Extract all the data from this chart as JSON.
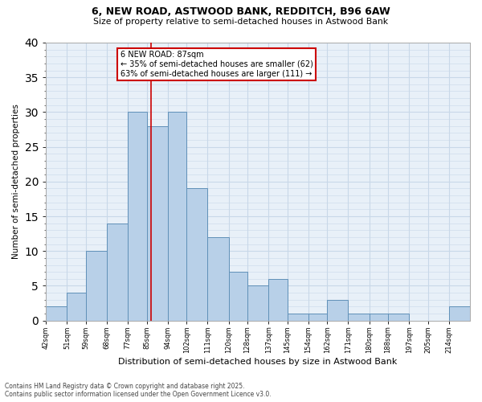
{
  "title1": "6, NEW ROAD, ASTWOOD BANK, REDDITCH, B96 6AW",
  "title2": "Size of property relative to semi-detached houses in Astwood Bank",
  "xlabel": "Distribution of semi-detached houses by size in Astwood Bank",
  "ylabel": "Number of semi-detached properties",
  "bin_labels": [
    "42sqm",
    "51sqm",
    "59sqm",
    "68sqm",
    "77sqm",
    "85sqm",
    "94sqm",
    "102sqm",
    "111sqm",
    "120sqm",
    "128sqm",
    "137sqm",
    "145sqm",
    "154sqm",
    "162sqm",
    "171sqm",
    "180sqm",
    "188sqm",
    "197sqm",
    "205sqm",
    "214sqm"
  ],
  "bar_values": [
    2,
    4,
    10,
    14,
    30,
    28,
    30,
    19,
    12,
    7,
    5,
    6,
    1,
    1,
    3,
    1,
    1,
    1,
    0,
    0,
    2
  ],
  "bar_color": "#b8d0e8",
  "bar_edge_color": "#6090b8",
  "property_label": "6 NEW ROAD: 87sqm",
  "pct_smaller": "35% of semi-detached houses are smaller (62)",
  "pct_larger": "63% of semi-detached houses are larger (111)",
  "annotation_box_color": "#cc0000",
  "vline_color": "#cc0000",
  "vline_x": 87,
  "ylim": [
    0,
    40
  ],
  "yticks": [
    0,
    5,
    10,
    15,
    20,
    25,
    30,
    35,
    40
  ],
  "grid_color": "#c8d8e8",
  "bg_color": "#e8f0f8",
  "footer1": "Contains HM Land Registry data © Crown copyright and database right 2025.",
  "footer2": "Contains public sector information licensed under the Open Government Licence v3.0.",
  "bin_edges": [
    42,
    51,
    59,
    68,
    77,
    85,
    94,
    102,
    111,
    120,
    128,
    137,
    145,
    154,
    162,
    171,
    180,
    188,
    197,
    205,
    214,
    223
  ]
}
